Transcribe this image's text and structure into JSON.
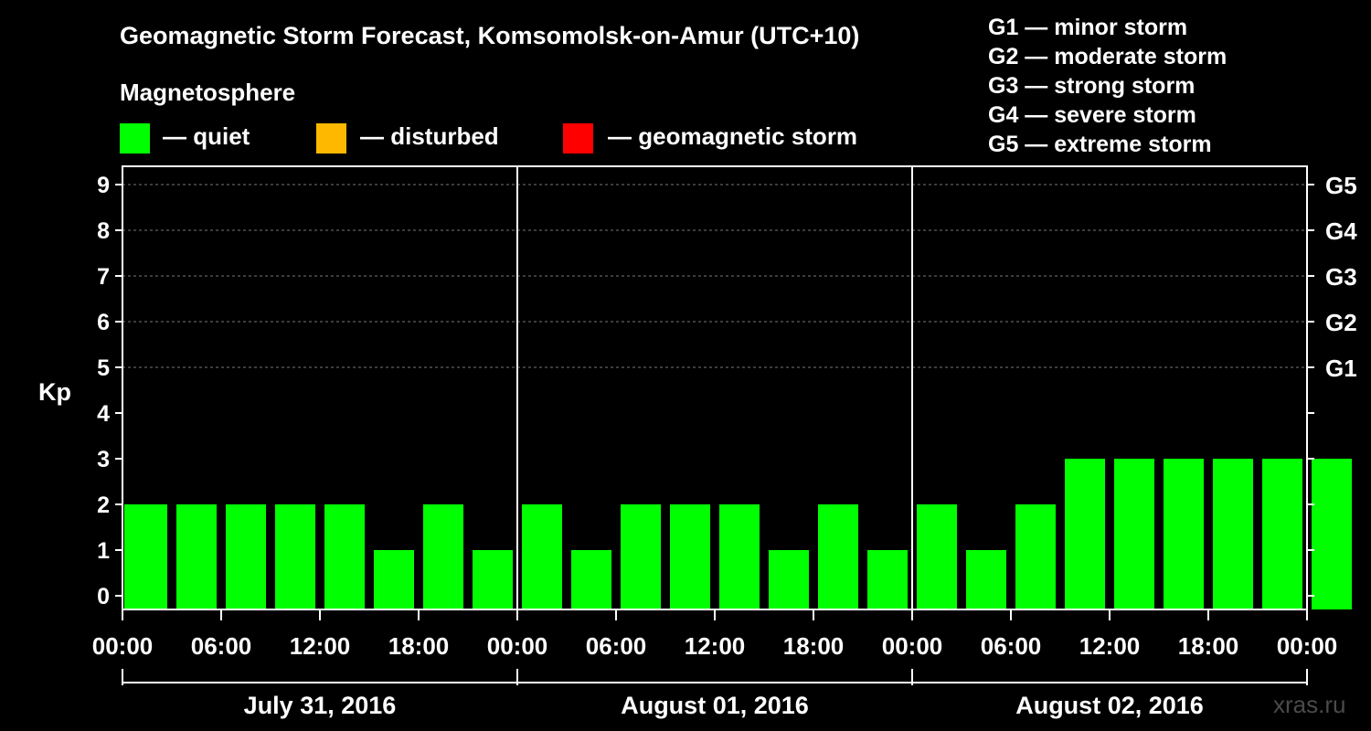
{
  "header": {
    "title": "Geomagnetic Storm Forecast, Komsomolsk-on-Amur (UTC+10)",
    "subtitle": "Magnetosphere"
  },
  "legend": {
    "items": [
      {
        "label": "— quiet",
        "color": "#00ff00"
      },
      {
        "label": "— disturbed",
        "color": "#ffb800"
      },
      {
        "label": "— geomagnetic storm",
        "color": "#ff0000"
      }
    ]
  },
  "storm_scale": [
    "G1 — minor storm",
    "G2 — moderate storm",
    "G3 — strong storm",
    "G4 — severe storm",
    "G5 — extreme storm"
  ],
  "credit": "xras.ru",
  "chart_data": {
    "type": "bar",
    "ylabel": "Kp",
    "ylim": [
      0,
      9
    ],
    "yticks": [
      0,
      1,
      2,
      3,
      4,
      5,
      6,
      7,
      8,
      9
    ],
    "right_axis": [
      {
        "label": "G1",
        "kp": 5
      },
      {
        "label": "G2",
        "kp": 6
      },
      {
        "label": "G3",
        "kp": 7
      },
      {
        "label": "G4",
        "kp": 8
      },
      {
        "label": "G5",
        "kp": 9
      }
    ],
    "xticks": [
      "00:00",
      "06:00",
      "12:00",
      "18:00",
      "00:00",
      "06:00",
      "12:00",
      "18:00",
      "00:00",
      "06:00",
      "12:00",
      "18:00",
      "00:00"
    ],
    "days": [
      "July 31, 2016",
      "August 01, 2016",
      "August 02, 2016"
    ],
    "interval_hours": 3,
    "values": [
      2,
      2,
      2,
      2,
      2,
      1,
      2,
      1,
      2,
      1,
      2,
      2,
      2,
      1,
      2,
      1,
      2,
      1,
      2,
      3,
      3,
      3,
      3,
      3,
      3
    ],
    "colors": {
      "quiet": "#00ff00",
      "disturbed": "#ffb800",
      "storm": "#ff0000"
    }
  }
}
